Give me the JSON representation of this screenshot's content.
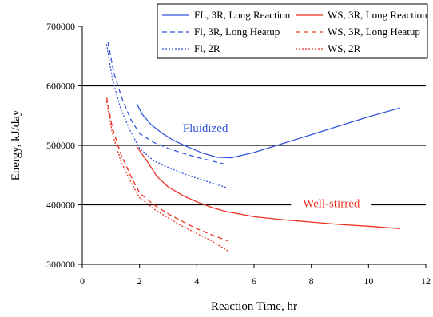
{
  "chart_data": {
    "type": "line",
    "xlabel": "Reaction Time, hr",
    "ylabel": "Energy, kJ/day",
    "xlim": [
      0,
      12
    ],
    "ylim": [
      300000,
      700000
    ],
    "x_ticks": [
      0,
      2,
      4,
      6,
      8,
      10,
      12
    ],
    "y_ticks": [
      300000,
      400000,
      500000,
      600000,
      700000
    ],
    "x_tick_labels": [
      "0",
      "2",
      "4",
      "6",
      "8",
      "10",
      "12"
    ],
    "y_tick_labels": [
      "300000",
      "400000",
      "500000",
      "600000",
      "700000"
    ],
    "grid": "horizontal",
    "legend_position": "top-right",
    "colors": {
      "blue": "#3355dd",
      "red": "#ee3322"
    },
    "series": [
      {
        "name": "FL, 3R, Long Reaction",
        "color": "#3355dd",
        "dash": "solid",
        "x": [
          1.9,
          2.1,
          2.4,
          2.8,
          3.2,
          3.7,
          4.2,
          4.7,
          5.2,
          6.0,
          7.0,
          8.0,
          9.0,
          10.0,
          11.1
        ],
        "y": [
          570000,
          552000,
          535000,
          520000,
          508000,
          497000,
          487000,
          480000,
          479000,
          488000,
          503000,
          518000,
          533000,
          548000,
          563000
        ]
      },
      {
        "name": "Fl, 3R, Long Heatup",
        "color": "#3355dd",
        "dash": "dashed",
        "x": [
          0.9,
          1.1,
          1.4,
          1.7,
          2.0,
          2.5,
          3.0,
          3.5,
          4.0,
          4.5,
          5.1
        ],
        "y": [
          673000,
          622000,
          577000,
          543000,
          520000,
          505000,
          495000,
          487000,
          480000,
          474000,
          467000
        ]
      },
      {
        "name": "Fl, 2R",
        "color": "#3355dd",
        "dash": "dotted",
        "x": [
          0.85,
          1.05,
          1.35,
          1.7,
          2.0,
          2.5,
          3.0,
          3.5,
          4.0,
          4.5,
          5.1
        ],
        "y": [
          670000,
          612000,
          560000,
          522000,
          495000,
          474000,
          463000,
          453000,
          445000,
          437000,
          428000
        ]
      },
      {
        "name": "WS, 3R, Long Reaction",
        "color": "#ee3322",
        "dash": "solid",
        "x": [
          1.9,
          2.2,
          2.6,
          3.0,
          3.5,
          4.0,
          4.5,
          5.0,
          6.0,
          7.0,
          8.0,
          9.0,
          10.0,
          11.1
        ],
        "y": [
          498000,
          478000,
          448000,
          430000,
          416000,
          405000,
          396000,
          389000,
          380000,
          375000,
          371000,
          367000,
          364000,
          360000
        ]
      },
      {
        "name": "WS, 3R, Long Heatup",
        "color": "#ee3322",
        "dash": "dashed",
        "x": [
          0.85,
          1.05,
          1.35,
          1.7,
          2.0,
          2.5,
          3.0,
          3.5,
          4.0,
          4.5,
          5.1
        ],
        "y": [
          580000,
          530000,
          485000,
          448000,
          420000,
          400000,
          385000,
          372000,
          360000,
          350000,
          339000
        ]
      },
      {
        "name": "WS, 2R",
        "color": "#ee3322",
        "dash": "dotted",
        "x": [
          0.85,
          1.05,
          1.35,
          1.7,
          2.0,
          2.5,
          3.0,
          3.5,
          4.0,
          4.5,
          5.1
        ],
        "y": [
          574000,
          520000,
          473000,
          438000,
          412000,
          393000,
          378000,
          364000,
          352000,
          340000,
          322000
        ]
      }
    ],
    "annotations": [
      {
        "text": "Fluidized",
        "x": 4.3,
        "y": 523000,
        "color": "#3355dd"
      },
      {
        "text": "Well-stirred",
        "x": 8.7,
        "y": 396000,
        "color": "#ee3322"
      }
    ]
  }
}
